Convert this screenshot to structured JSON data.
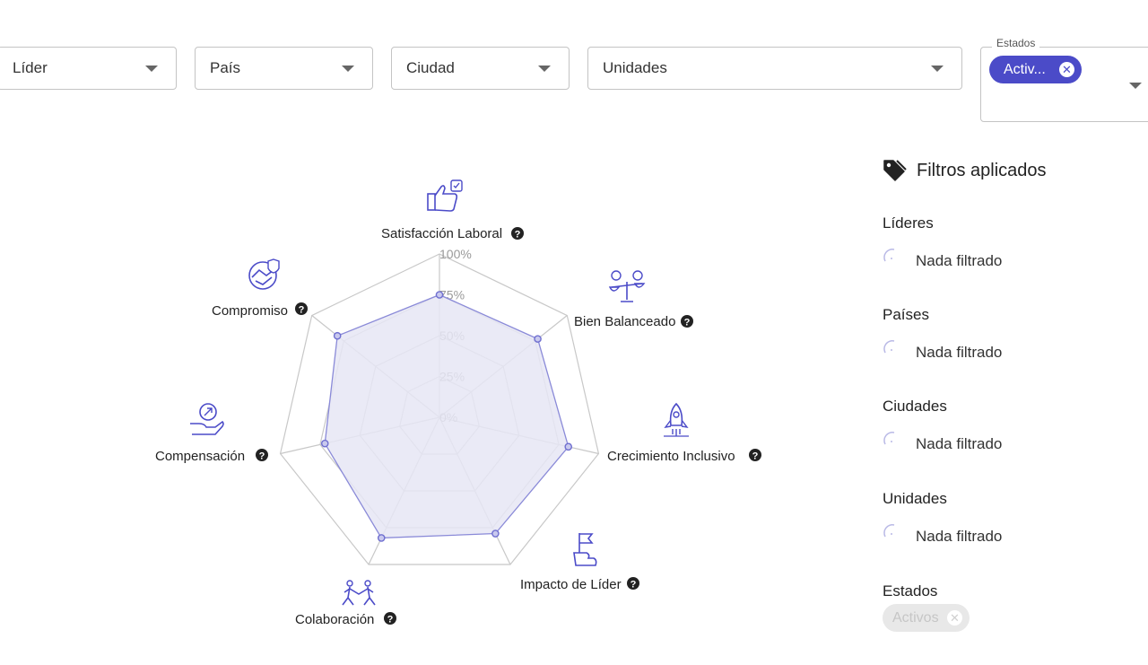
{
  "filters": {
    "lider": "Líder",
    "pais": "País",
    "ciudad": "Ciudad",
    "unidades": "Unidades",
    "estados_label": "Estados",
    "estados_chip": "Activ..."
  },
  "panel": {
    "title": "Filtros aplicados",
    "groups": [
      {
        "heading": "Líderes",
        "value": "Nada filtrado"
      },
      {
        "heading": "Países",
        "value": "Nada filtrado"
      },
      {
        "heading": "Ciudades",
        "value": "Nada filtrado"
      },
      {
        "heading": "Unidades",
        "value": "Nada filtrado"
      }
    ],
    "estados_heading": "Estados",
    "estados_chip": "Activos"
  },
  "colors": {
    "accent": "#4b4bc8",
    "fill": "#e6e6f5",
    "grid": "#c8c8c8"
  },
  "chart_data": {
    "type": "radar",
    "axes": [
      {
        "label": "Satisfacción Laboral",
        "icon": "thumbs-up-icon",
        "value": 75
      },
      {
        "label": "Bien Balanceado",
        "icon": "balance-icon",
        "value": 77
      },
      {
        "label": "Crecimiento Inclusivo",
        "icon": "rocket-icon",
        "value": 81
      },
      {
        "label": "Impacto de Líder",
        "icon": "flag-hand-icon",
        "value": 79
      },
      {
        "label": "Colaboración",
        "icon": "teamwork-icon",
        "value": 82
      },
      {
        "label": "Compensación",
        "icon": "money-hand-icon",
        "value": 72
      },
      {
        "label": "Compromiso",
        "icon": "handshake-icon",
        "value": 80
      }
    ],
    "ticks": [
      "0%",
      "25%",
      "50%",
      "75%",
      "100%"
    ],
    "range": [
      0,
      100
    ]
  }
}
